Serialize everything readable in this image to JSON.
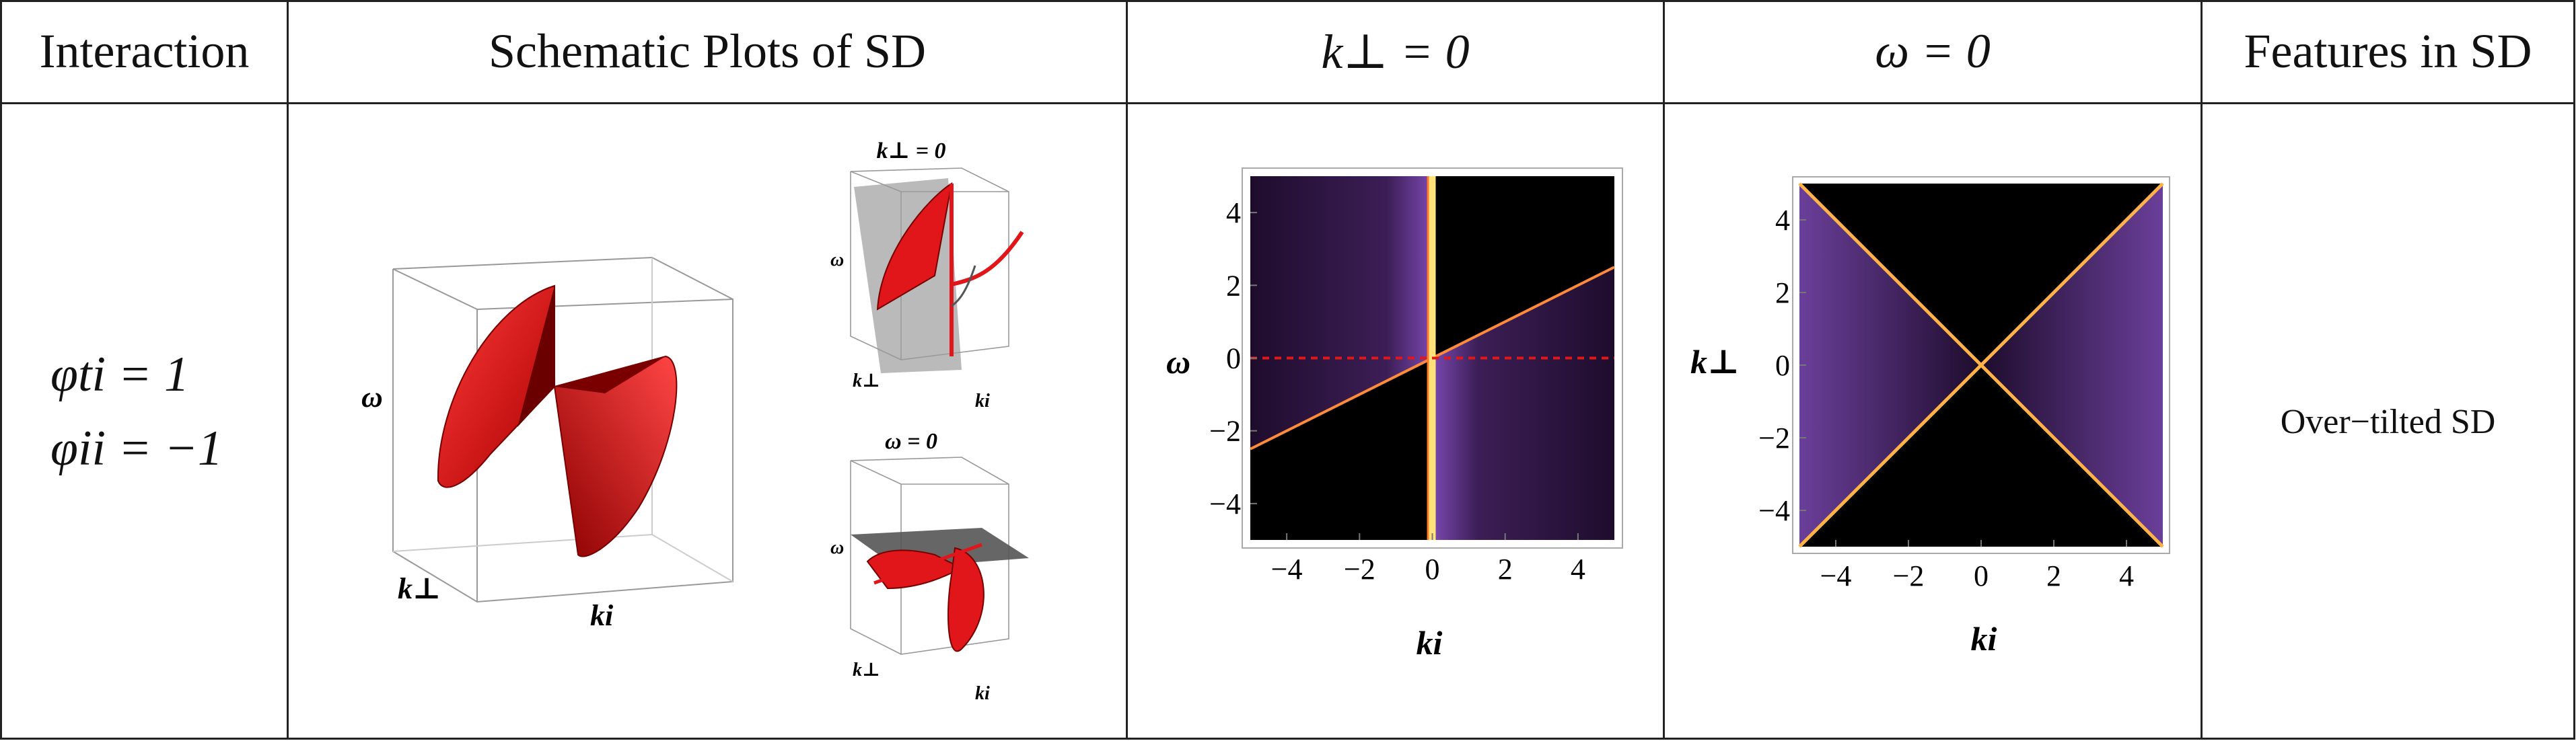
{
  "table": {
    "headers": [
      "Interaction",
      "Schematic Plots of SD",
      "k⊥ = 0",
      "ω = 0",
      "Features in SD"
    ],
    "interaction": {
      "line1": "φti = 1",
      "line2": "φii = −1"
    },
    "features": "Over−tilted SD"
  },
  "schematic": {
    "large": {
      "axis_omega": "ω",
      "axis_kperp": "k⊥",
      "axis_ki": "ki"
    },
    "small_top": {
      "title": "k⊥ = 0",
      "axis_omega": "ω",
      "axis_kperp": "k⊥",
      "axis_ki": "ki"
    },
    "small_bottom": {
      "title": "ω = 0",
      "axis_omega": "ω",
      "axis_kperp": "k⊥",
      "axis_ki": "ki"
    }
  },
  "colors": {
    "surface_red": "#e0161a",
    "plot_bg": "#000000",
    "plot_purple": "#3a1a4e",
    "line_yellow": "#ffd04a",
    "dashed_red": "#e01818"
  },
  "chart_data": [
    {
      "type": "heatmap",
      "xlabel": "ki",
      "ylabel": "ω",
      "xlim": [
        -5,
        5
      ],
      "ylim": [
        -5,
        5
      ],
      "xticks": [
        -4,
        -2,
        0,
        2,
        4
      ],
      "yticks": [
        -4,
        -2,
        0,
        2,
        4
      ],
      "features": {
        "vertical_line_x": 0,
        "tilted_line_slope": 0.5,
        "dashed_line_y": 0
      }
    },
    {
      "type": "heatmap",
      "xlabel": "ki",
      "ylabel": "k⊥",
      "xlim": [
        -5,
        5
      ],
      "ylim": [
        -5,
        5
      ],
      "xticks": [
        -4,
        -2,
        0,
        2,
        4
      ],
      "yticks": [
        -4,
        -2,
        0,
        2,
        4
      ],
      "features": {
        "diagonal_lines": [
          1,
          -1
        ]
      }
    }
  ]
}
